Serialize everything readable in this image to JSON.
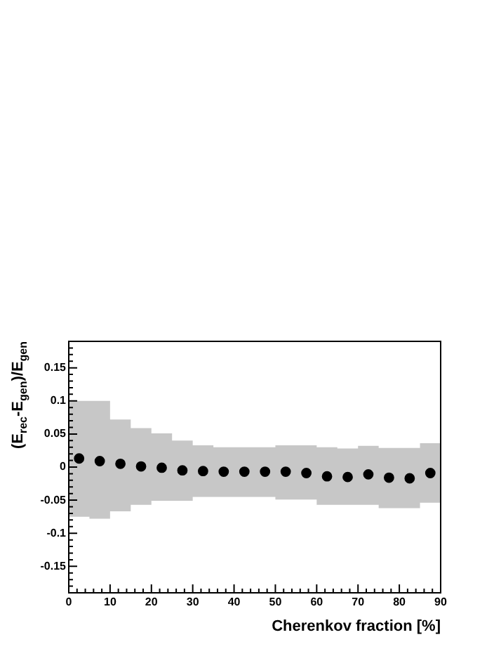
{
  "chart_data": {
    "type": "scatter",
    "xlabel": "Cherenkov fraction [%]",
    "ylabel": "(E$_{rec}$-E$_{gen}$)/E$_{gen}$",
    "xlim": [
      0,
      90
    ],
    "ylim": [
      -0.19,
      0.19
    ],
    "grid": false,
    "legend": false,
    "marker": "circle",
    "xticks": [
      0,
      {
        "value": 2,
        "label": null
      },
      {
        "value": 4,
        "label": null
      },
      {
        "value": 6,
        "label": null
      },
      {
        "value": 8,
        "label": null
      },
      10,
      {
        "value": 12,
        "label": null
      },
      {
        "value": 14,
        "label": null
      },
      {
        "value": 16,
        "label": null
      },
      {
        "value": 18,
        "label": null
      },
      20,
      {
        "value": 22,
        "label": null
      },
      {
        "value": 24,
        "label": null
      },
      {
        "value": 26,
        "label": null
      },
      {
        "value": 28,
        "label": null
      },
      30,
      {
        "value": 32,
        "label": null
      },
      {
        "value": 34,
        "label": null
      },
      {
        "value": 36,
        "label": null
      },
      {
        "value": 38,
        "label": null
      },
      40,
      {
        "value": 42,
        "label": null
      },
      {
        "value": 44,
        "label": null
      },
      {
        "value": 46,
        "label": null
      },
      {
        "value": 48,
        "label": null
      },
      50,
      {
        "value": 52,
        "label": null
      },
      {
        "value": 54,
        "label": null
      },
      {
        "value": 56,
        "label": null
      },
      {
        "value": 58,
        "label": null
      },
      60,
      {
        "value": 62,
        "label": null
      },
      {
        "value": 64,
        "label": null
      },
      {
        "value": 66,
        "label": null
      },
      {
        "value": 68,
        "label": null
      },
      70,
      {
        "value": 72,
        "label": null
      },
      {
        "value": 74,
        "label": null
      },
      {
        "value": 76,
        "label": null
      },
      {
        "value": 78,
        "label": null
      },
      80,
      {
        "value": 82,
        "label": null
      },
      {
        "value": 84,
        "label": null
      },
      {
        "value": 86,
        "label": null
      },
      {
        "value": 88,
        "label": null
      },
      90
    ],
    "yticks": [
      {
        "value": -0.18,
        "label": null
      },
      {
        "value": -0.17,
        "label": null
      },
      {
        "value": -0.16,
        "label": null
      },
      -0.15,
      {
        "value": -0.14,
        "label": null
      },
      {
        "value": -0.13,
        "label": null
      },
      {
        "value": -0.12,
        "label": null
      },
      {
        "value": -0.11,
        "label": null
      },
      -0.1,
      {
        "value": -0.09,
        "label": null
      },
      {
        "value": -0.08,
        "label": null
      },
      {
        "value": -0.07,
        "label": null
      },
      {
        "value": -0.06,
        "label": null
      },
      -0.05,
      {
        "value": -0.04,
        "label": null
      },
      {
        "value": -0.03,
        "label": null
      },
      {
        "value": -0.02,
        "label": null
      },
      {
        "value": -0.01,
        "label": null
      },
      0,
      {
        "value": 0.01,
        "label": null
      },
      {
        "value": 0.02,
        "label": null
      },
      {
        "value": 0.03,
        "label": null
      },
      {
        "value": 0.04,
        "label": null
      },
      0.05,
      {
        "value": 0.06,
        "label": null
      },
      {
        "value": 0.07,
        "label": null
      },
      {
        "value": 0.08,
        "label": null
      },
      {
        "value": 0.09,
        "label": null
      },
      0.1,
      {
        "value": 0.11,
        "label": null
      },
      {
        "value": 0.12,
        "label": null
      },
      {
        "value": 0.13,
        "label": null
      },
      {
        "value": 0.14,
        "label": null
      },
      0.15,
      {
        "value": 0.16,
        "label": null
      },
      {
        "value": 0.17,
        "label": null
      },
      {
        "value": 0.18,
        "label": null
      }
    ],
    "series": [
      {
        "type": "line",
        "color": "#777777",
        "x": [
          0,
          5,
          5,
          10,
          10,
          15,
          15,
          20,
          20,
          25,
          25,
          30,
          30,
          35,
          35,
          40,
          40,
          45,
          45,
          50,
          50,
          55,
          55,
          60,
          60,
          65,
          65,
          70,
          70,
          75,
          75,
          80,
          80,
          85,
          85,
          90
        ],
        "values": [
          null,
          null,
          null,
          null,
          null,
          null,
          null,
          null,
          null,
          null,
          null,
          null,
          null,
          null,
          null,
          null,
          null,
          null,
          null,
          null,
          null,
          null,
          null,
          null,
          null,
          null,
          null,
          null,
          null,
          null,
          null,
          null,
          null,
          null,
          null,
          null
        ],
        "lower": [
          -0.075,
          -0.075,
          -0.078,
          -0.078,
          -0.067,
          -0.067,
          -0.057,
          -0.057,
          -0.051,
          -0.051,
          -0.051,
          -0.051,
          -0.045,
          -0.045,
          -0.045,
          -0.045,
          -0.045,
          -0.045,
          -0.045,
          -0.045,
          -0.049,
          -0.049,
          -0.049,
          -0.049,
          -0.057,
          -0.057,
          -0.057,
          -0.057,
          -0.057,
          -0.057,
          -0.062,
          -0.062,
          -0.062,
          -0.062,
          -0.054,
          -0.054
        ],
        "upper": [
          0.1,
          0.1,
          0.1,
          0.1,
          0.072,
          0.072,
          0.059,
          0.059,
          0.051,
          0.051,
          0.04,
          0.04,
          0.033,
          0.033,
          0.03,
          0.03,
          0.03,
          0.03,
          0.03,
          0.03,
          0.033,
          0.033,
          0.033,
          0.033,
          0.03,
          0.03,
          0.028,
          0.028,
          0.032,
          0.032,
          0.029,
          0.029,
          0.029,
          0.029,
          0.036,
          0.036
        ]
      },
      {
        "color": "#000000",
        "x": [
          2.5,
          7.5,
          12.5,
          17.5,
          22.5,
          27.5,
          32.5,
          37.5,
          42.5,
          47.5,
          52.5,
          57.5,
          62.5,
          67.5,
          72.5,
          77.5,
          82.5,
          87.5
        ],
        "values": [
          0.013,
          0.009,
          0.005,
          0.001,
          -0.001,
          -0.005,
          -0.006,
          -0.007,
          -0.007,
          -0.007,
          -0.007,
          -0.009,
          -0.014,
          -0.015,
          -0.011,
          -0.016,
          -0.017,
          -0.009
        ]
      }
    ]
  }
}
